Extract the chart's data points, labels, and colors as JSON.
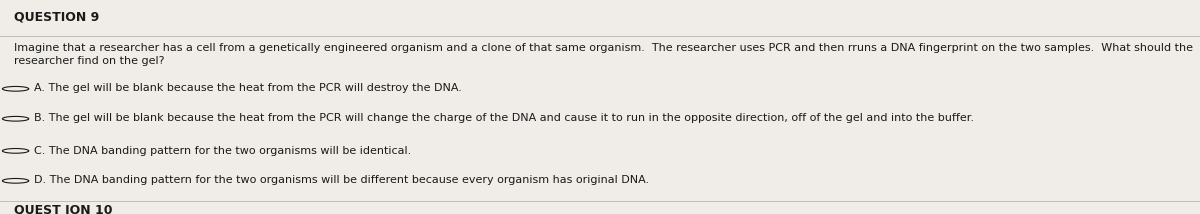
{
  "title": "QUESTION 9",
  "question": "Imagine that a researcher has a cell from a genetically engineered organism and a clone of that same organism.  The researcher uses PCR and then rruns a DNA fingerprint on the two samples.  What should the\nresearcher find on the gel?",
  "options": [
    "A. The gel will be blank because the heat from the PCR will destroy the DNA.",
    "B. The gel will be blank because the heat from the PCR will change the charge of the DNA and cause it to run in the opposite direction, off of the gel and into the buffer.",
    "C. The DNA banding pattern for the two organisms will be identical.",
    "D. The DNA banding pattern for the two organisms will be different because every organism has original DNA."
  ],
  "footer": "QUEST ION 10",
  "bg_color": "#f0ede8",
  "text_color": "#1a1a1a",
  "line_color": "#aaaaaa",
  "title_fontsize": 9,
  "question_fontsize": 8,
  "option_fontsize": 8,
  "footer_fontsize": 9,
  "fig_width": 12.0,
  "fig_height": 2.14
}
